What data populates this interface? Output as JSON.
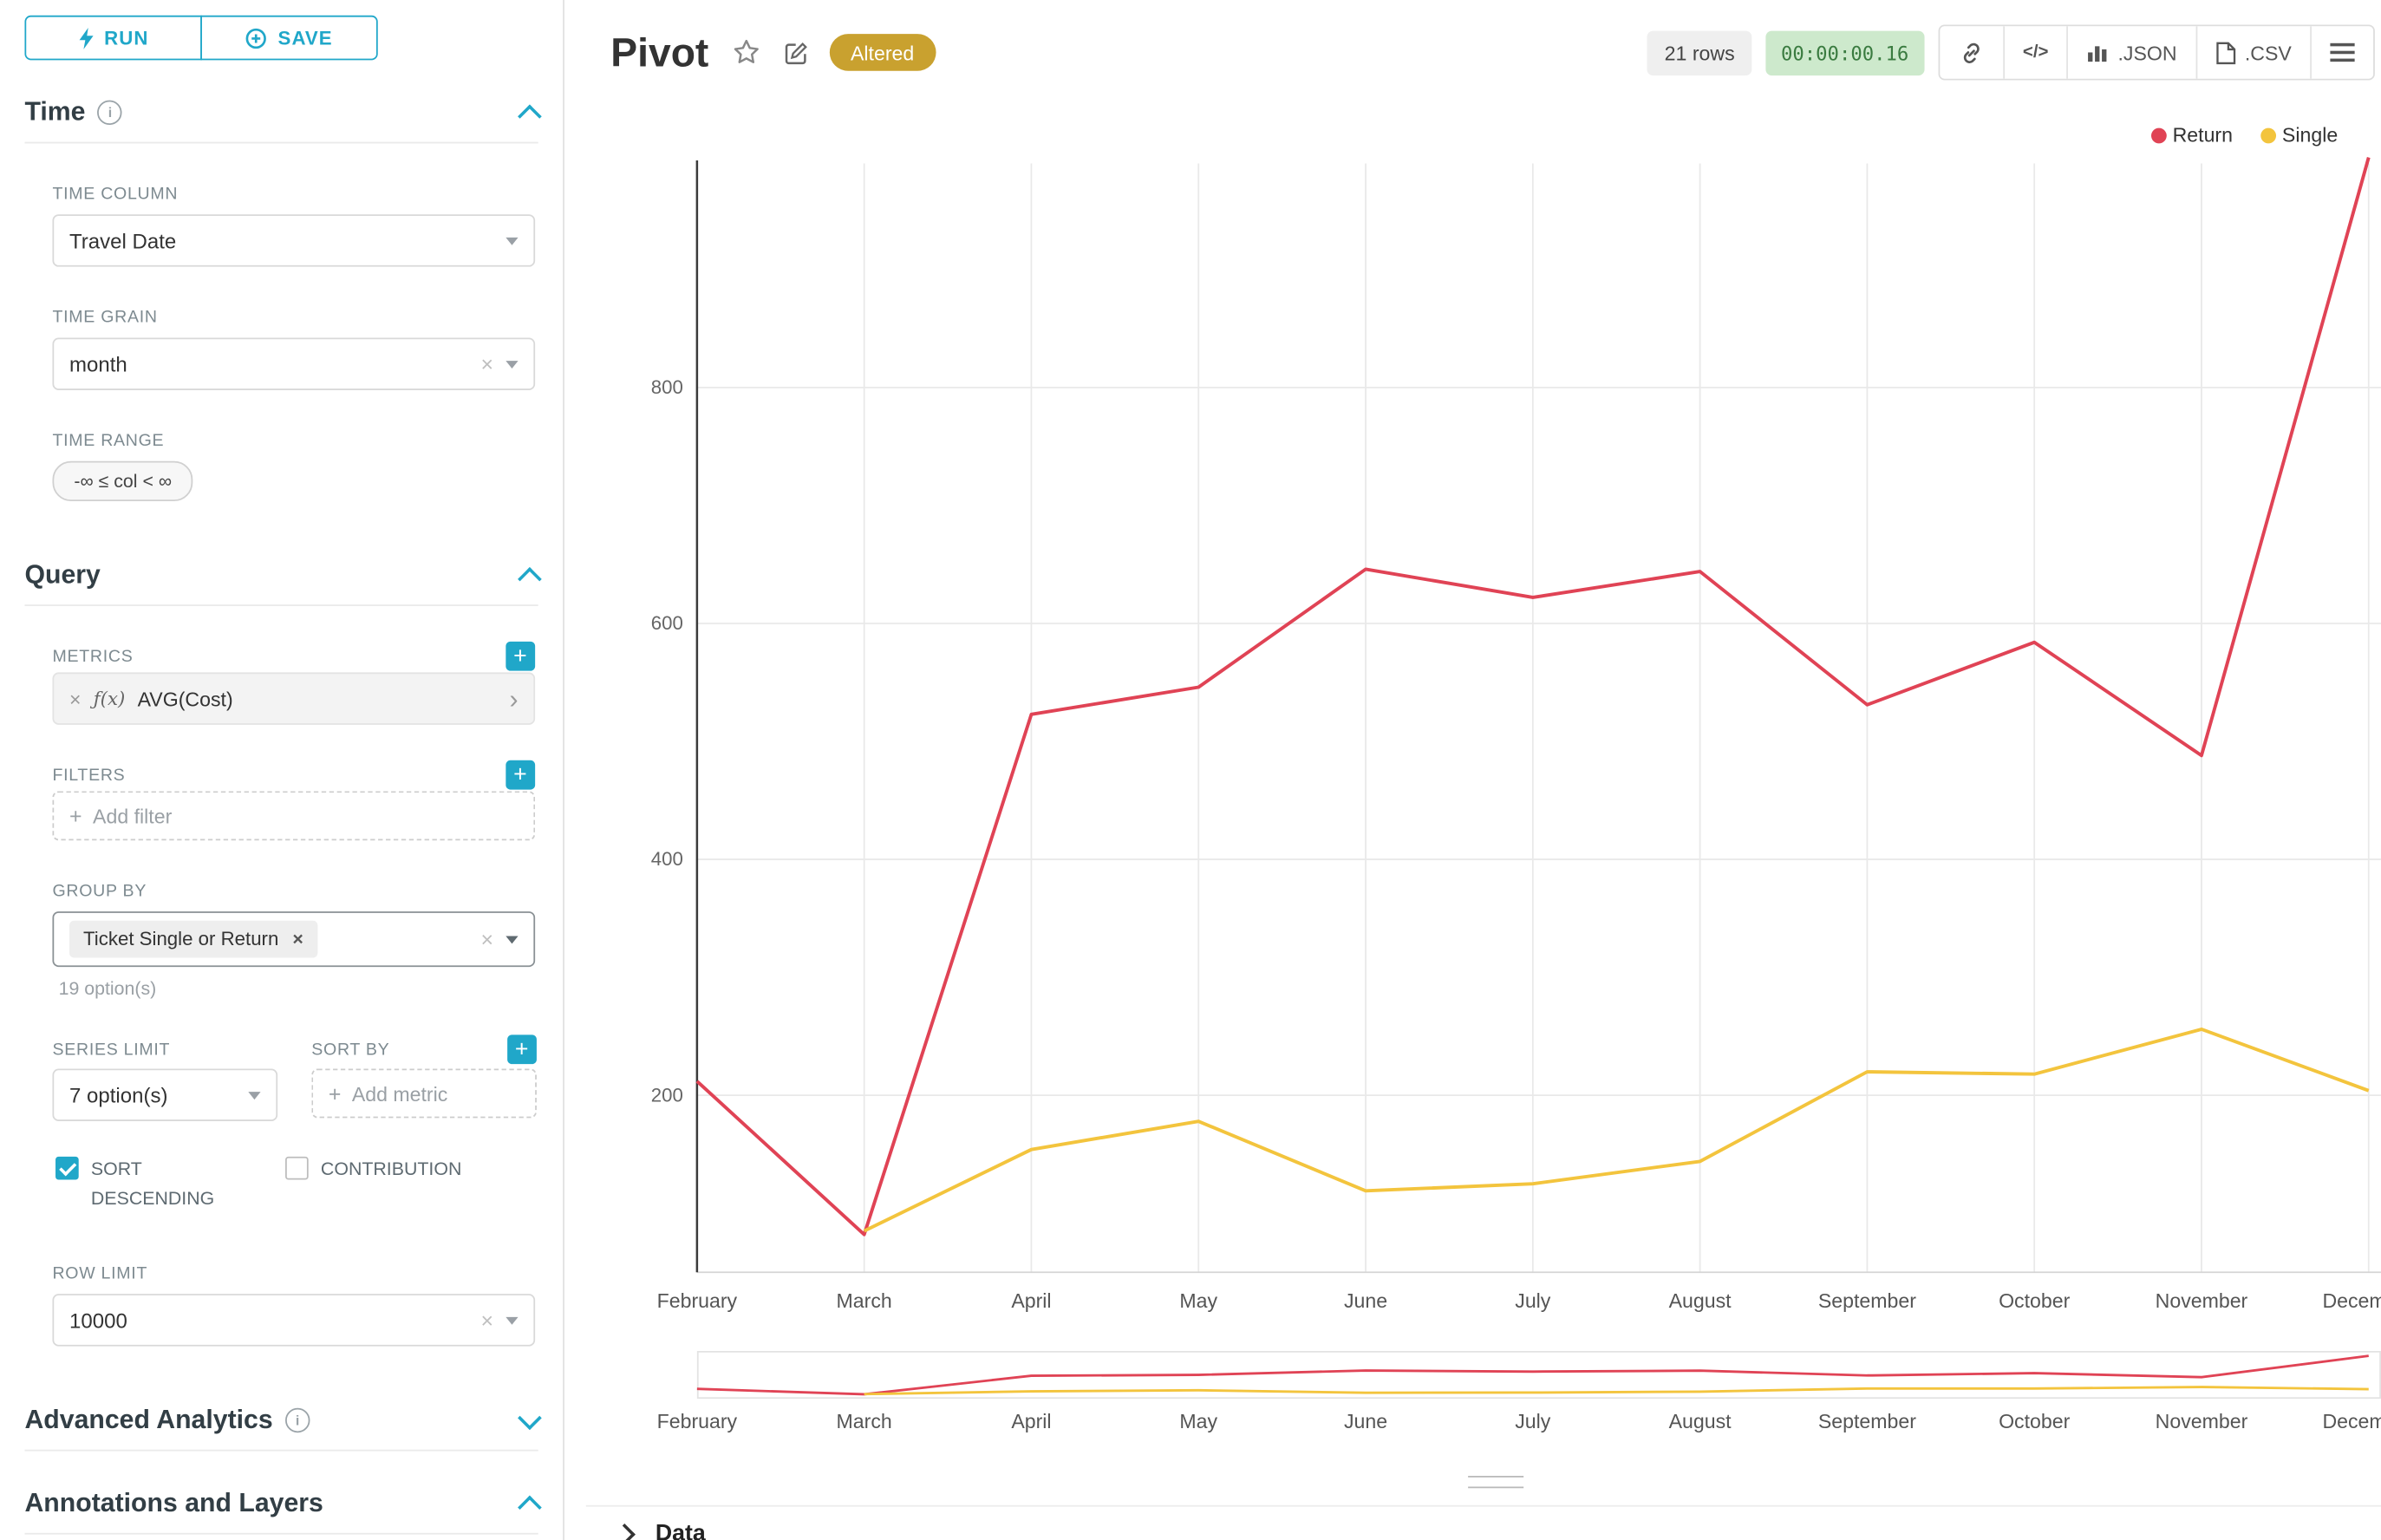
{
  "toolbar": {
    "run_label": "RUN",
    "save_label": "SAVE"
  },
  "sidebar": {
    "time": {
      "title": "Time",
      "time_column_label": "TIME COLUMN",
      "time_column_value": "Travel Date",
      "time_grain_label": "TIME GRAIN",
      "time_grain_value": "month",
      "time_range_label": "TIME RANGE",
      "time_range_value": "-∞ ≤ col < ∞"
    },
    "query": {
      "title": "Query",
      "metrics_label": "METRICS",
      "metric_fx": "ƒ(x)",
      "metric_value": "AVG(Cost)",
      "filters_label": "FILTERS",
      "add_filter_placeholder": "Add filter",
      "group_by_label": "GROUP BY",
      "group_by_chip": "Ticket Single or Return",
      "options_hint": "19 option(s)",
      "series_limit_label": "SERIES LIMIT",
      "series_limit_value": "7 option(s)",
      "sort_by_label": "SORT BY",
      "add_metric_placeholder": "Add metric",
      "sort_descending_label": "SORT DESCENDING",
      "contribution_label": "CONTRIBUTION",
      "row_limit_label": "ROW LIMIT",
      "row_limit_value": "10000"
    },
    "advanced": {
      "title": "Advanced Analytics"
    },
    "annotations": {
      "title": "Annotations and Layers"
    }
  },
  "header": {
    "title": "Pivot",
    "altered_badge": "Altered",
    "rows_badge": "21 rows",
    "timer_badge": "00:00:00.16",
    "code_icon_label": "</>",
    "json_button": ".JSON",
    "csv_button": ".CSV"
  },
  "footer": {
    "data_label": "Data"
  },
  "chart_data": {
    "type": "line",
    "x": [
      "February",
      "March",
      "April",
      "May",
      "June",
      "July",
      "August",
      "September",
      "October",
      "November",
      "December"
    ],
    "series": [
      {
        "name": "Return",
        "color": "#e04355",
        "values": [
          212,
          82,
          523,
          546,
          646,
          622,
          644,
          531,
          584,
          488,
          995
        ]
      },
      {
        "name": "Single",
        "color": "#f3c43d",
        "values": [
          null,
          85,
          154,
          178,
          119,
          125,
          144,
          220,
          218,
          256,
          204
        ]
      }
    ],
    "yticks": [
      200,
      400,
      600,
      800
    ],
    "ylim": [
      50,
      1010
    ],
    "grid": true,
    "legend_position": "top-right"
  }
}
